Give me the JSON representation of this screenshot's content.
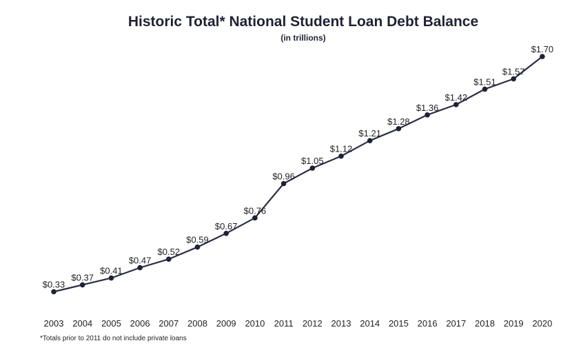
{
  "chart_data": {
    "type": "line",
    "title": "Historic Total* National Student Loan Debt Balance",
    "subtitle": "(in trillions)",
    "footnote": "*Totals prior to 2011 do not include private loans",
    "xlabel": "",
    "ylabel": "",
    "x": [
      "2003",
      "2004",
      "2005",
      "2006",
      "2007",
      "2008",
      "2009",
      "2010",
      "2011",
      "2012",
      "2013",
      "2014",
      "2015",
      "2016",
      "2017",
      "2018",
      "2019",
      "2020"
    ],
    "values": [
      0.33,
      0.37,
      0.41,
      0.47,
      0.52,
      0.59,
      0.67,
      0.76,
      0.96,
      1.05,
      1.12,
      1.21,
      1.28,
      1.36,
      1.42,
      1.51,
      1.57,
      1.7
    ],
    "data_labels": [
      "$0.33",
      "$0.37",
      "$0.41",
      "$0.47",
      "$0.52",
      "$0.59",
      "$0.67",
      "$0.76",
      "$0.96",
      "$1.05",
      "$1.12",
      "$1.21",
      "$1.28",
      "$1.36",
      "$1.42",
      "$1.51",
      "$1.57",
      "$1.70"
    ],
    "grid": false,
    "legend": "none",
    "line_color": "#2b2d42",
    "marker_color": "#1f2235"
  }
}
